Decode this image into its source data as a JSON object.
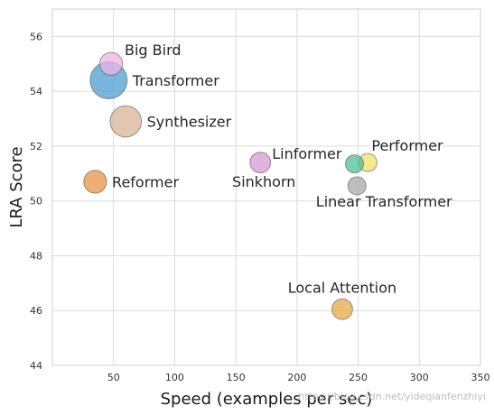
{
  "chart_data": {
    "type": "scatter",
    "title": "",
    "xlabel": "Speed (examples per sec)",
    "ylabel": "LRA Score",
    "xlim": [
      0,
      350
    ],
    "ylim": [
      44,
      57
    ],
    "xticks": [
      50,
      100,
      150,
      200,
      250,
      300,
      350
    ],
    "yticks": [
      44,
      46,
      48,
      50,
      52,
      54,
      56
    ],
    "grid": true,
    "legend": "none",
    "points": [
      {
        "label": "Big Bird",
        "x": 48,
        "y": 55.0,
        "size": 1.6,
        "color": "#f0b3e3",
        "label_side": "upper-right"
      },
      {
        "label": "Transformer",
        "x": 46,
        "y": 54.4,
        "size": 4.2,
        "color": "#4c9ed1",
        "label_side": "right"
      },
      {
        "label": "Synthesizer",
        "x": 60,
        "y": 52.9,
        "size": 3.0,
        "color": "#d9b394",
        "label_side": "right"
      },
      {
        "label": "Reformer",
        "x": 35,
        "y": 50.7,
        "size": 1.6,
        "color": "#e8944a",
        "label_side": "right"
      },
      {
        "label": "Linformer",
        "x": 170,
        "y": 51.4,
        "size": 1.3,
        "color": "#d79ad6",
        "label_side": "upper-right"
      },
      {
        "label": "Sinkhorn",
        "x": 170,
        "y": 51.4,
        "size": 0,
        "color": "#d79ad6",
        "label_side": "below-left"
      },
      {
        "label": "Performer",
        "x": 258,
        "y": 51.4,
        "size": 1.0,
        "color": "#efe26a",
        "label_side": "upper-right"
      },
      {
        "label": "",
        "x": 247,
        "y": 51.35,
        "size": 1.0,
        "color": "#4fbf9b",
        "label_side": "none"
      },
      {
        "label": "Linear Transformer",
        "x": 249,
        "y": 50.55,
        "size": 1.0,
        "color": "#a8a8a8",
        "label_side": "below"
      },
      {
        "label": "Local Attention",
        "x": 237,
        "y": 46.05,
        "size": 1.3,
        "color": "#e8a84a",
        "label_side": "above"
      }
    ]
  },
  "watermark": "https://blog.csdn.net/yideqianfenzhiyi"
}
